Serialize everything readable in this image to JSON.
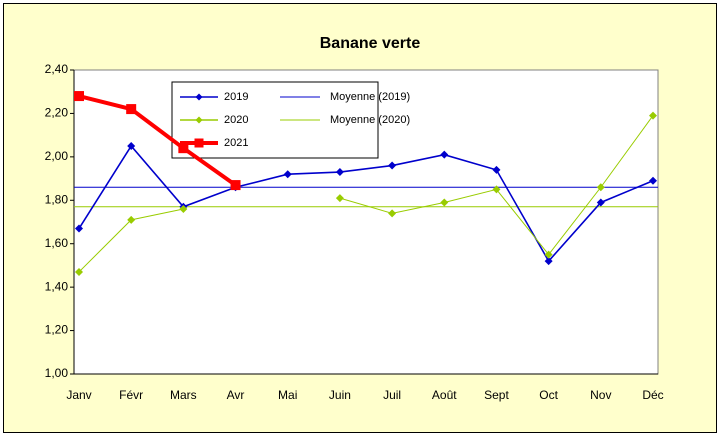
{
  "chart_data": {
    "type": "line",
    "title": "Banane verte",
    "categories": [
      "Janv",
      "Févr",
      "Mars",
      "Avr",
      "Mai",
      "Juin",
      "Juil",
      "Août",
      "Sept",
      "Oct",
      "Nov",
      "Déc"
    ],
    "series": [
      {
        "name": "2019",
        "color": "#0000cc",
        "marker": "diamond",
        "values": [
          1.67,
          2.05,
          1.77,
          1.86,
          1.92,
          1.93,
          1.96,
          2.01,
          1.94,
          1.52,
          1.79,
          1.89
        ]
      },
      {
        "name": "2020",
        "color": "#99cc00",
        "marker": "diamond",
        "values": [
          1.47,
          1.71,
          1.76,
          null,
          null,
          1.81,
          1.74,
          1.79,
          1.85,
          1.55,
          1.86,
          2.19
        ]
      },
      {
        "name": "2021",
        "color": "#ff0000",
        "marker": "square",
        "values": [
          2.28,
          2.22,
          2.04,
          1.87,
          null,
          null,
          null,
          null,
          null,
          null,
          null,
          null
        ]
      }
    ],
    "reference_lines": [
      {
        "name": "Moyenne (2019)",
        "color": "#0000cc",
        "value": 1.86
      },
      {
        "name": "Moyenne (2020)",
        "color": "#99cc00",
        "value": 1.77
      }
    ],
    "ylim": [
      1.0,
      2.4
    ],
    "yticks": [
      {
        "value": 1.0,
        "label": "1,00"
      },
      {
        "value": 1.2,
        "label": "1,20"
      },
      {
        "value": 1.4,
        "label": "1,40"
      },
      {
        "value": 1.6,
        "label": "1,60"
      },
      {
        "value": 1.8,
        "label": "1,80"
      },
      {
        "value": 2.0,
        "label": "2,00"
      },
      {
        "value": 2.2,
        "label": "2,20"
      },
      {
        "value": 2.4,
        "label": "2,40"
      }
    ],
    "grid": false,
    "legend": "top-left"
  }
}
